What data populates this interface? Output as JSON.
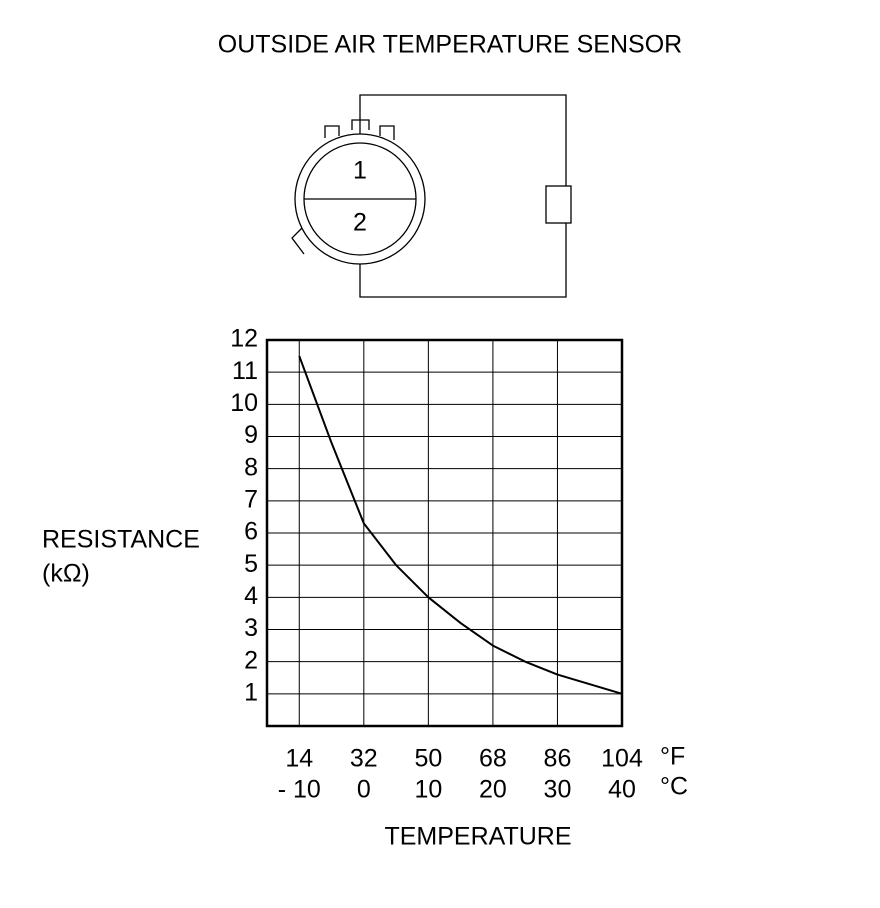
{
  "title": "OUTSIDE AIR TEMPERATURE SENSOR",
  "connector": {
    "pins": [
      "1",
      "2"
    ]
  },
  "chart_data": {
    "type": "line",
    "ylabel": [
      "RESISTANCE",
      "(kΩ)"
    ],
    "xlabel": "TEMPERATURE",
    "x": [
      -10,
      -5,
      0,
      5,
      10,
      15,
      20,
      25,
      30,
      35,
      40
    ],
    "series": [
      {
        "color": "#000000",
        "values": [
          11.5,
          8.8,
          6.3,
          5.0,
          4.0,
          3.2,
          2.5,
          2.0,
          1.6,
          1.3,
          1.0
        ]
      }
    ],
    "xlim": [
      -15,
      40
    ],
    "xticks": [
      {
        "value": -10,
        "label": "- 10"
      },
      0,
      10,
      20,
      30,
      40
    ],
    "xticks_f": [
      14,
      32,
      50,
      68,
      86,
      104
    ],
    "x_units": [
      "°F",
      "°C"
    ],
    "ylim": [
      0,
      12
    ],
    "yticks": [
      1,
      2,
      3,
      4,
      5,
      6,
      7,
      8,
      9,
      10,
      11,
      12
    ],
    "grid": true
  }
}
